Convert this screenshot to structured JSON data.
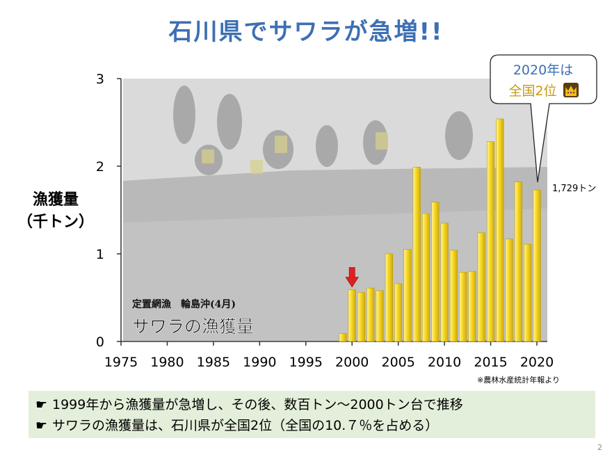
{
  "slide": {
    "title": "石川県でサワラが急増!!",
    "page_number": "2",
    "source_note": "※農林水産統計年報より"
  },
  "y_axis_label": {
    "line1": "漁獲量",
    "line2": "（千トン）"
  },
  "photo": {
    "caption_small": "定置網漁　輪島沖(4月)",
    "caption_large": "サワラの漁獲量"
  },
  "callout": {
    "line1": "2020年は",
    "line2": "全国2位",
    "crown_icon": "crown-icon"
  },
  "last_value_label": "1,729トン",
  "bullets": [
    "1999年から漁獲量が急増し、その後、数百トン～2000トン台で推移",
    "サワラの漁獲量は、石川県が全国2位（全国の10.７％を占める）"
  ],
  "bullet_icon": "pointing-hand-icon",
  "colors": {
    "title": "#3d6fb3",
    "bar": "#f2d21c",
    "bar_edge": "#b89a10",
    "arrow": "#e02020",
    "notes_bg": "#e3efda",
    "callout_blue": "#3d6fb3",
    "callout_gold": "#c9980e"
  },
  "chart_data": {
    "type": "bar",
    "x": [
      1999,
      2000,
      2001,
      2002,
      2003,
      2004,
      2005,
      2006,
      2007,
      2008,
      2009,
      2010,
      2011,
      2012,
      2013,
      2014,
      2015,
      2016,
      2017,
      2018,
      2019,
      2020
    ],
    "values": [
      0.09,
      0.59,
      0.56,
      0.61,
      0.58,
      1.0,
      0.66,
      1.05,
      1.99,
      1.46,
      1.59,
      1.35,
      1.04,
      0.79,
      0.8,
      1.24,
      2.28,
      2.54,
      1.17,
      1.82,
      1.11,
      1.729
    ],
    "x_ticks": [
      1975,
      1980,
      1985,
      1990,
      1995,
      2000,
      2005,
      2010,
      2015,
      2020
    ],
    "y_ticks": [
      0,
      1,
      2,
      3
    ],
    "xlim": [
      1975,
      2020
    ],
    "ylim": [
      0,
      3
    ],
    "highlight_year": 2000,
    "grid": false
  }
}
